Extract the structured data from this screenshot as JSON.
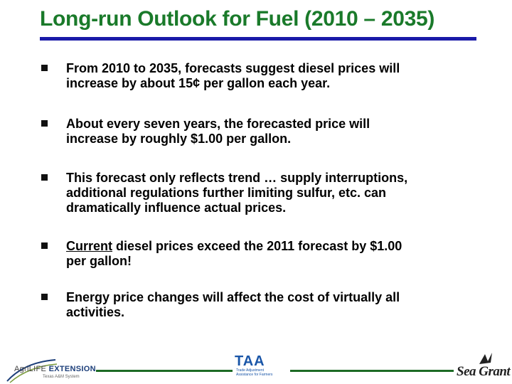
{
  "slide": {
    "title": "Long-run Outlook for Fuel (2010 – 2035)",
    "bullets": [
      {
        "lines": [
          "From 2010 to 2035, forecasts suggest diesel prices will",
          "increase by about 15¢ per gallon each year."
        ]
      },
      {
        "lines": [
          "About every seven years, the forecasted price will",
          "increase by roughly $1.00 per gallon."
        ]
      },
      {
        "lines": [
          "This forecast only reflects trend … supply interruptions,",
          "additional regulations further limiting sulfur, etc. can",
          "dramatically influence actual prices."
        ]
      },
      {
        "emphasis": "Current",
        "lines": [
          " diesel prices exceed the 2011 forecast by $1.00",
          "per gallon!"
        ]
      },
      {
        "lines": [
          "Energy price changes will affect the cost of virtually all",
          "activities."
        ]
      }
    ]
  },
  "footer": {
    "agrilife_logo": {
      "agri": "AgriLIFE",
      "extension": "EXTENSION",
      "sub": "Texas A&M System"
    },
    "taa_logo": {
      "name": "TAA",
      "sub": "Trade Adjustment Assistance for Farmers"
    },
    "seagrant_logo": {
      "name": "Sea Grant"
    }
  },
  "colors": {
    "title": "#1a7a2a",
    "title_rule": "#1a1aa8",
    "footer_line": "#1d6b25",
    "taa_blue": "#1a56a8"
  }
}
